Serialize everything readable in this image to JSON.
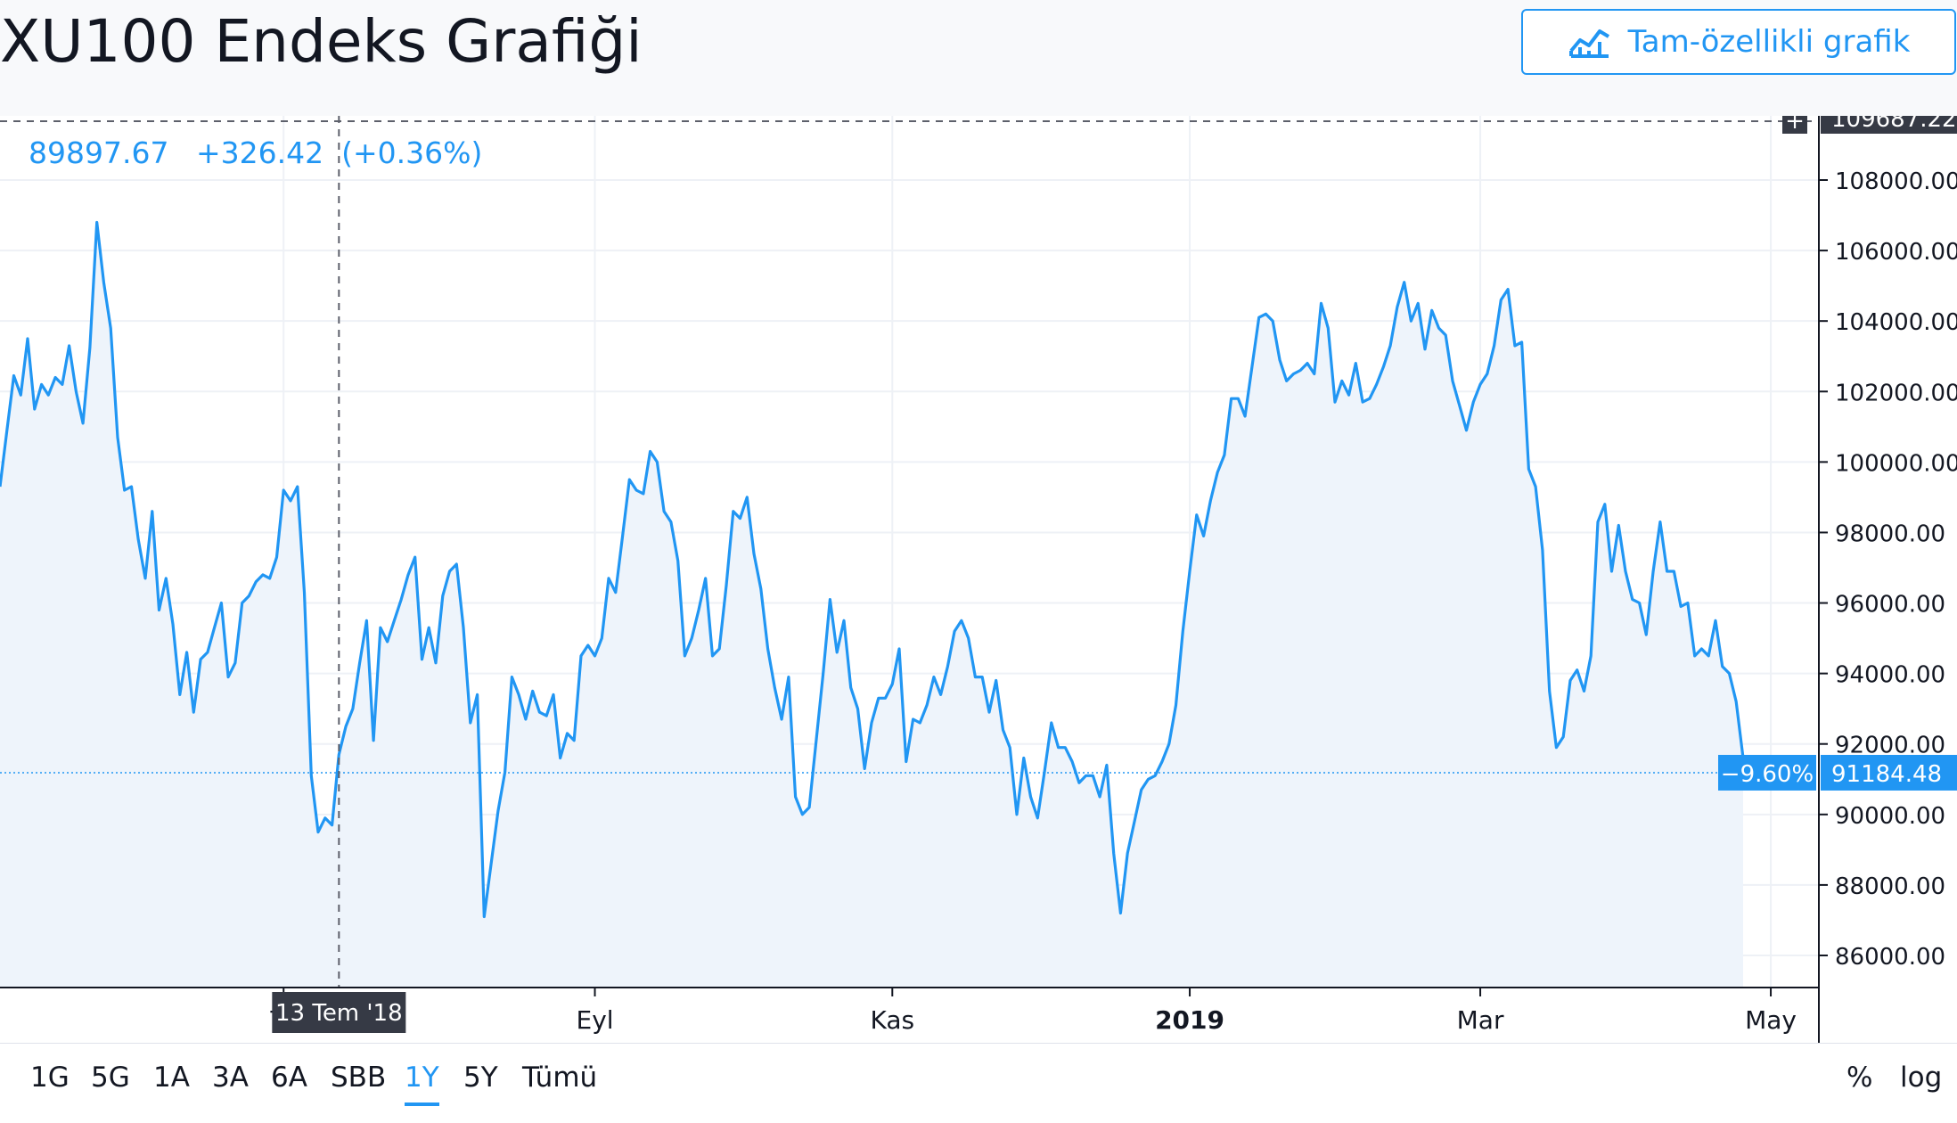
{
  "header": {
    "title": "XU100 Endeks Grafiği",
    "full_chart_label": "Tam-özellikli grafik",
    "full_chart_icon": "chart-line-icon"
  },
  "legend": {
    "price": "89897.67",
    "change": "+326.42",
    "change_pct": "(+0.36%)"
  },
  "crosshair": {
    "date_label": "13 Tem '18",
    "price_label": "109687.22"
  },
  "last": {
    "pct_label": "−9.60%",
    "price_label": "91184.48"
  },
  "ranges": [
    "1G",
    "5G",
    "1A",
    "3A",
    "6A",
    "SBB",
    "1Y",
    "5Y",
    "Tümü"
  ],
  "active_range": "1Y",
  "options": {
    "percent": "%",
    "log": "log"
  },
  "colors": {
    "line": "#2196f3",
    "fill": "#eef4fb",
    "grid": "#eef1f6",
    "axis": "#131722",
    "crosshair": "#5d606b",
    "tag_bg": "#363a45"
  },
  "chart_data": {
    "type": "area",
    "series": [
      {
        "values": [
          99300,
          100900,
          102450,
          101900,
          103500,
          101500,
          102200,
          101900,
          102400,
          102200,
          103300,
          102000,
          101100,
          103250,
          106800,
          105100,
          103800,
          100700,
          99200,
          99300,
          97800,
          96700,
          98600,
          95800,
          96700,
          95400,
          93400,
          94600,
          92900,
          94400,
          94600,
          95300,
          96000,
          93900,
          94300,
          96000,
          96200,
          96600,
          96800,
          96700,
          97300,
          99200,
          98900,
          99300,
          96300,
          91100,
          89500,
          89900,
          89700,
          91700,
          92500,
          93000,
          94300,
          95500,
          92100,
          95300,
          94900,
          95500,
          96100,
          96800,
          97300,
          94400,
          95300,
          94300,
          96200,
          96900,
          97100,
          95300,
          92600,
          93400,
          87100,
          88600,
          90100,
          91200,
          93900,
          93400,
          92700,
          93500,
          92900,
          92800,
          93400,
          91600,
          92300,
          92100,
          94500,
          94800,
          94500,
          95000,
          96700,
          96300,
          97900,
          99500,
          99200,
          99100,
          100300,
          100000,
          98600,
          98300,
          97200,
          94500,
          95000,
          95800,
          96700,
          94500,
          94700,
          96500,
          98600,
          98400,
          99000,
          97400,
          96400,
          94700,
          93600,
          92700,
          93900,
          90500,
          90000,
          90200,
          92100,
          94000,
          96100,
          94600,
          95500,
          93600,
          93000,
          91300,
          92600,
          93300,
          93300,
          93700,
          94700,
          91500,
          92700,
          92600,
          93100,
          93900,
          93400,
          94200,
          95200,
          95500,
          95000,
          93900,
          93900,
          92900,
          93800,
          92400,
          91900,
          90000,
          91600,
          90500,
          89900,
          91200,
          92600,
          91900,
          91900,
          91500,
          90900,
          91100,
          91100,
          90500,
          91400,
          88900,
          87200,
          88900,
          89800,
          90700,
          91000,
          91100,
          91500,
          92000,
          93100,
          95200,
          96900,
          98500,
          97900,
          98900,
          99700,
          100200,
          101800,
          101800,
          101300,
          102700,
          104100,
          104200,
          104000,
          102900,
          102300,
          102500,
          102600,
          102800,
          102500,
          104500,
          103800,
          101700,
          102300,
          101900,
          102800,
          101700,
          101800,
          102200,
          102700,
          103300,
          104400,
          105100,
          104000,
          104500,
          103200,
          104300,
          103800,
          103600,
          102300,
          101600,
          100900,
          101700,
          102200,
          102500,
          103300,
          104600,
          104900,
          103300,
          103400,
          99800,
          99300,
          97500,
          93500,
          91900,
          92200,
          93800,
          94100,
          93500,
          94500,
          98300,
          98800,
          96900,
          98200,
          96900,
          96100,
          96000,
          95100,
          96900,
          98300,
          96900,
          96900,
          95900,
          96000,
          94500,
          94700,
          94500,
          95500,
          94200,
          94000,
          93200,
          91600
        ],
        "last_value": 91184.48
      }
    ],
    "y_ticks": [
      86000,
      88000,
      90000,
      92000,
      94000,
      96000,
      98000,
      100000,
      102000,
      104000,
      106000,
      108000
    ],
    "y_tick_labels": [
      "86000.00",
      "88000.00",
      "90000.00",
      "92000.00",
      "94000.00",
      "96000.00",
      "98000.00",
      "100000.00",
      "102000.00",
      "104000.00",
      "106000.00",
      "108000.00"
    ],
    "x_ticks": [
      {
        "label": "Te",
        "index": 41
      },
      {
        "label": "Eyl",
        "index": 86
      },
      {
        "label": "Kas",
        "index": 129
      },
      {
        "label": "2019",
        "index": 172,
        "bold": true
      },
      {
        "label": "Mar",
        "index": 214
      },
      {
        "label": "May",
        "index": 256
      }
    ],
    "ylim": [
      85100,
      109900
    ],
    "grid": true,
    "crosshair_index": 49
  }
}
